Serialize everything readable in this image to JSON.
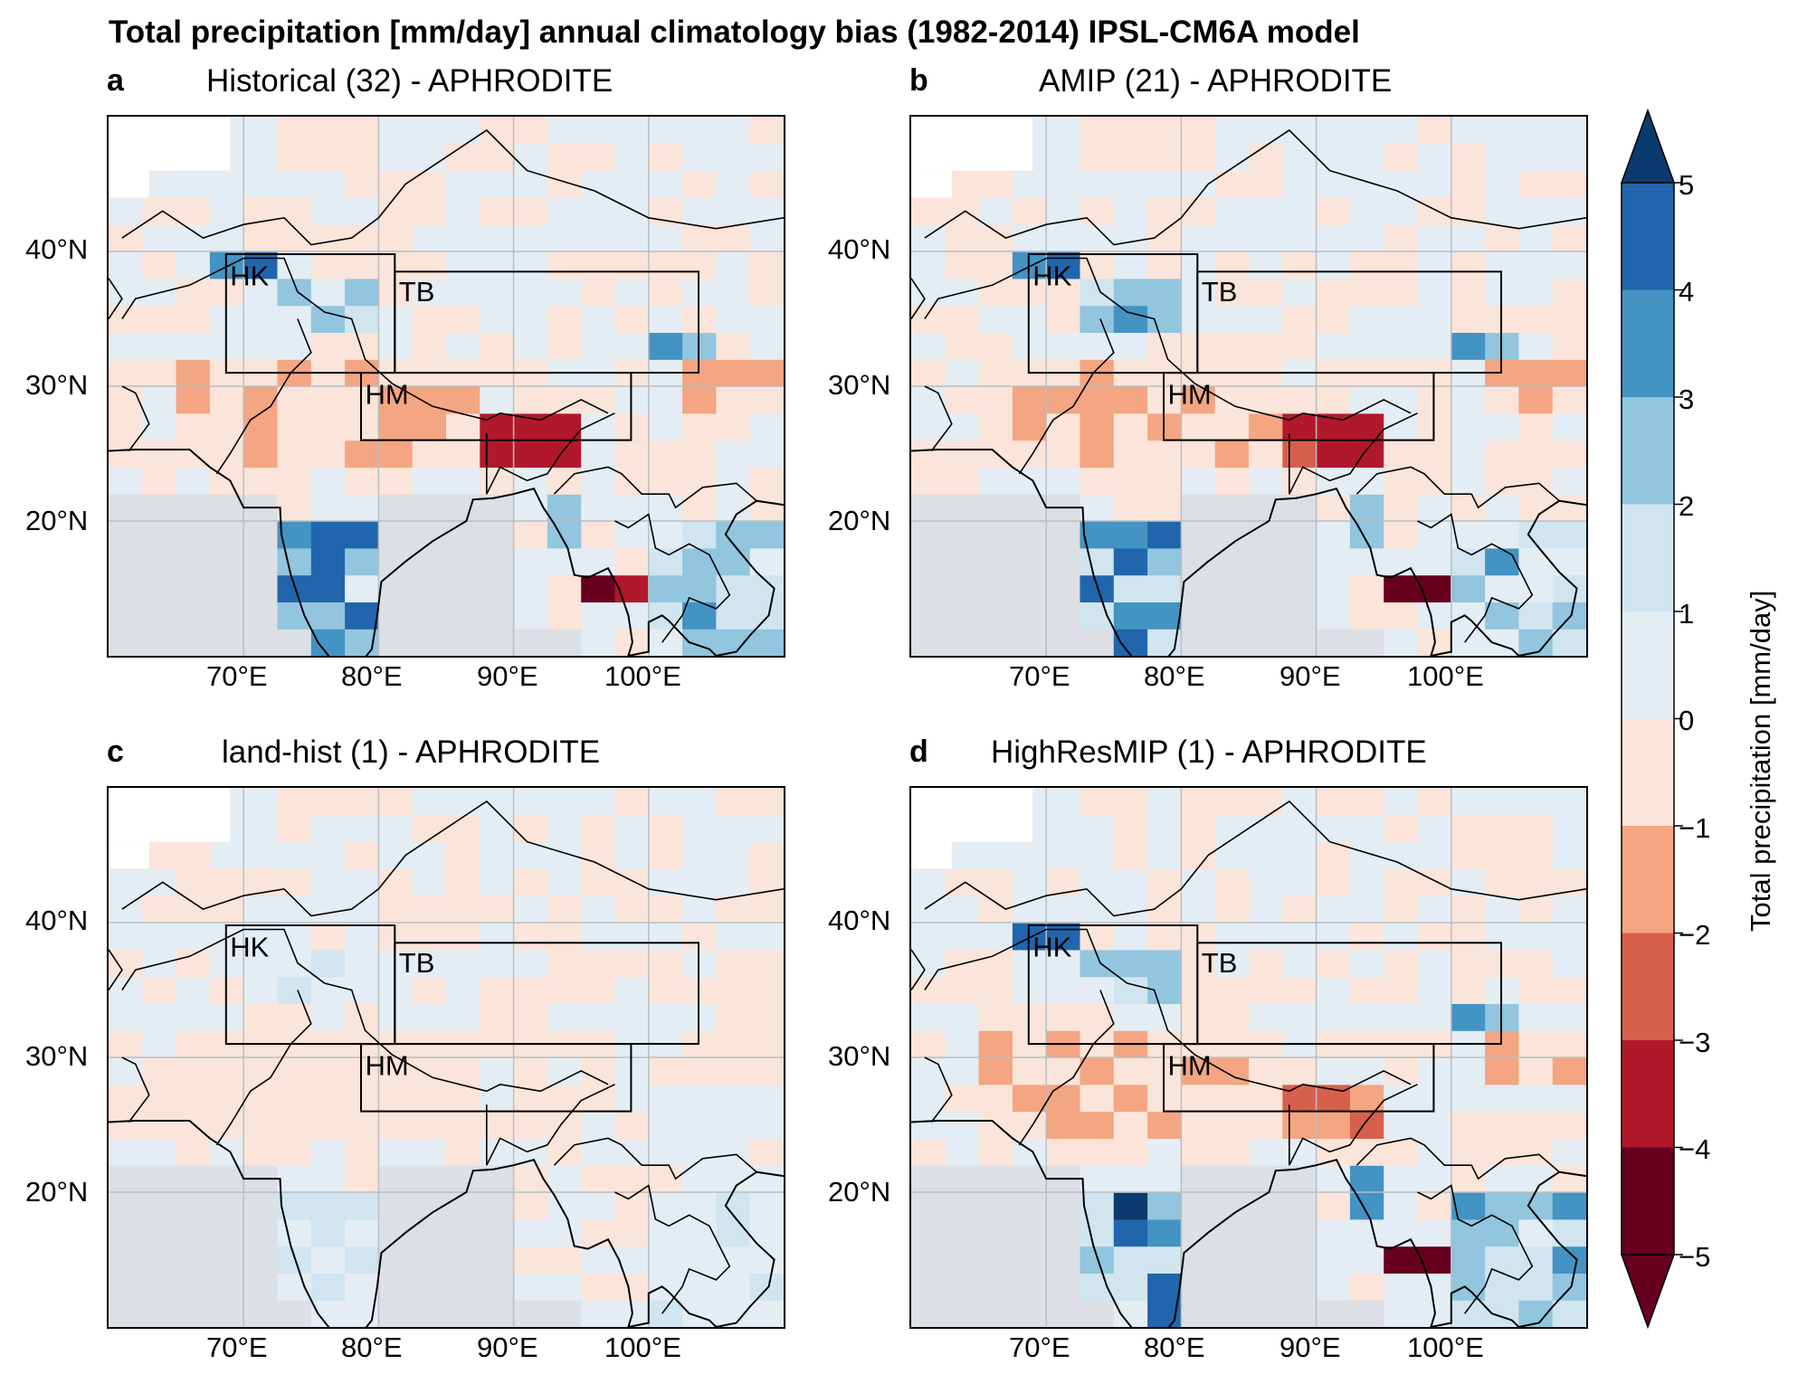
{
  "title": "Total precipitation [mm/day] annual climatology bias (1982-2014) IPSL-CM6A model",
  "panels": [
    {
      "letter": "a",
      "title": "Historical (32) - APHRODITE",
      "intensity": 1.0,
      "himRed": 1.0
    },
    {
      "letter": "b",
      "title": "AMIP (21) - APHRODITE",
      "intensity": 1.1,
      "himRed": 0.9
    },
    {
      "letter": "c",
      "title": "land-hist (1) - APHRODITE",
      "intensity": 0.45,
      "himRed": 0.0
    },
    {
      "letter": "d",
      "title": "HighResMIP (1) - APHRODITE",
      "intensity": 1.2,
      "himRed": 0.6
    }
  ],
  "regions": [
    "HK",
    "TB",
    "HM"
  ],
  "axes": {
    "lon_ticks": [
      "70°E",
      "80°E",
      "90°E",
      "100°E"
    ],
    "lat_ticks": [
      "40°N",
      "30°N",
      "20°N"
    ],
    "lon_range": [
      60,
      110
    ],
    "lat_range": [
      10,
      50
    ]
  },
  "colorbar": {
    "label": "Total precipitation [mm/day]",
    "ticks": [
      "5",
      "4",
      "3",
      "2",
      "1",
      "0",
      "−1",
      "−2",
      "−3",
      "−4",
      "−5"
    ],
    "colors_top_to_bottom": [
      "#0b3a6e",
      "#2166ac",
      "#4393c3",
      "#92c5de",
      "#d1e5f0",
      "#e4edf3",
      "#fbe4d9",
      "#f4a582",
      "#d6604d",
      "#b2182b",
      "#67001f"
    ],
    "extend": "both"
  },
  "ocean_color": "#dcdfe3"
}
